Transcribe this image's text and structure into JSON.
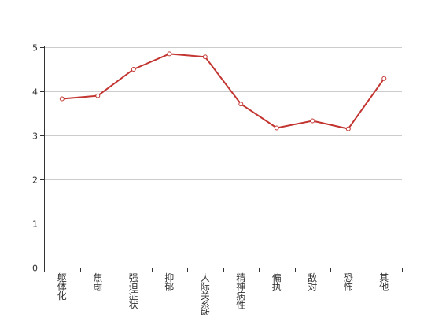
{
  "chart_data": {
    "type": "line",
    "categories": [
      "躯体化",
      "焦虑",
      "强迫症状",
      "抑郁",
      "人际关系敏感",
      "精神病性",
      "偏执",
      "敌对",
      "恐怖",
      "其他"
    ],
    "series": [
      {
        "values": [
          3.83,
          3.9,
          4.5,
          4.85,
          4.78,
          3.71,
          3.17,
          3.33,
          3.15,
          4.29
        ],
        "color": "#c23531"
      }
    ],
    "yticks": [
      0,
      1,
      2,
      3,
      4,
      5
    ],
    "ylim": [
      0,
      5
    ],
    "grid": true,
    "axis_color": "#333333",
    "grid_color": "#cccccc"
  }
}
